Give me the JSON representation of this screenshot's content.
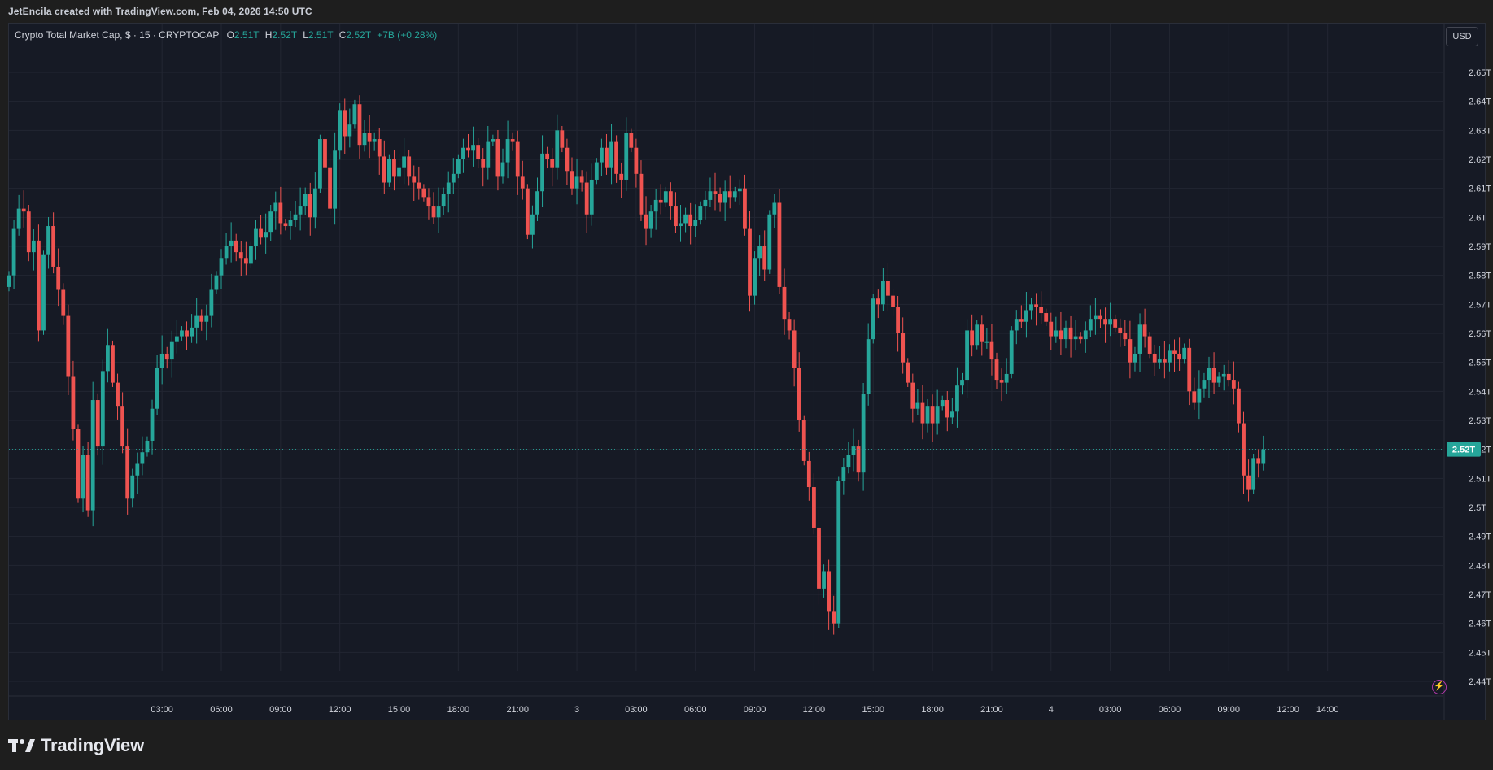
{
  "header": {
    "attribution": "JetEncila created with TradingView.com, Feb 04, 2026 14:50 UTC"
  },
  "legend": {
    "symbol": "Crypto Total Market Cap, $ · 15 · CRYPTOCAP",
    "open_label": "O",
    "open_value": "2.51T",
    "high_label": "H",
    "high_value": "2.52T",
    "low_label": "L",
    "low_value": "2.51T",
    "close_label": "C",
    "close_value": "2.52T",
    "change": "+7B (+0.28%)"
  },
  "currency_button": "USD",
  "brand": {
    "name": "TradingView"
  },
  "colors": {
    "up": "#26a69a",
    "down": "#ef5350",
    "background": "#161a25",
    "grid": "#222632",
    "axis_text": "#d1d4dc",
    "last_price_badge": "#26a69a"
  },
  "chart_data": {
    "type": "candlestick",
    "title": "Crypto Total Market Cap, $ · 15 · CRYPTOCAP",
    "interval": "15",
    "unit": "T",
    "ylim": [
      2.435,
      2.665
    ],
    "y_ticks": [
      "2.44T",
      "2.45T",
      "2.46T",
      "2.47T",
      "2.48T",
      "2.49T",
      "2.5T",
      "2.51T",
      "2.52T",
      "2.53T",
      "2.54T",
      "2.55T",
      "2.56T",
      "2.57T",
      "2.58T",
      "2.59T",
      "2.6T",
      "2.61T",
      "2.62T",
      "2.63T",
      "2.64T",
      "2.65T"
    ],
    "y_tick_values": [
      2.44,
      2.45,
      2.46,
      2.47,
      2.48,
      2.49,
      2.5,
      2.51,
      2.52,
      2.53,
      2.54,
      2.55,
      2.56,
      2.57,
      2.58,
      2.59,
      2.6,
      2.61,
      2.62,
      2.63,
      2.64,
      2.65
    ],
    "x_ticks": [
      "03:00",
      "06:00",
      "09:00",
      "12:00",
      "15:00",
      "18:00",
      "21:00",
      "3",
      "03:00",
      "06:00",
      "09:00",
      "12:00",
      "15:00",
      "18:00",
      "21:00",
      "4",
      "03:00",
      "06:00",
      "09:00",
      "12:00",
      "14:00"
    ],
    "x_tick_index": [
      31,
      43,
      55,
      67,
      79,
      91,
      103,
      115,
      127,
      139,
      151,
      163,
      175,
      187,
      199,
      211,
      223,
      235,
      247,
      259,
      267
    ],
    "last_price": 2.52,
    "last_price_label": "2.52T",
    "close_series": [
      2.58,
      2.596,
      2.603,
      2.602,
      2.588,
      2.592,
      2.561,
      2.587,
      2.597,
      2.583,
      2.575,
      2.566,
      2.545,
      2.527,
      2.503,
      2.518,
      2.499,
      2.537,
      2.521,
      2.547,
      2.556,
      2.543,
      2.535,
      2.521,
      2.503,
      2.511,
      2.515,
      2.519,
      2.523,
      2.534,
      2.548,
      2.553,
      2.551,
      2.557,
      2.559,
      2.561,
      2.559,
      2.562,
      2.566,
      2.564,
      2.566,
      2.575,
      2.58,
      2.586,
      2.59,
      2.592,
      2.588,
      2.586,
      2.584,
      2.59,
      2.596,
      2.593,
      2.595,
      2.602,
      2.605,
      2.598,
      2.597,
      2.599,
      2.601,
      2.604,
      2.608,
      2.6,
      2.61,
      2.627,
      2.617,
      2.603,
      2.623,
      2.637,
      2.628,
      2.632,
      2.639,
      2.625,
      2.629,
      2.626,
      2.627,
      2.621,
      2.612,
      2.62,
      2.614,
      2.617,
      2.621,
      2.614,
      2.612,
      2.61,
      2.607,
      2.604,
      2.6,
      2.604,
      2.608,
      2.612,
      2.615,
      2.62,
      2.624,
      2.623,
      2.625,
      2.62,
      2.617,
      2.626,
      2.627,
      2.614,
      2.619,
      2.627,
      2.626,
      2.614,
      2.61,
      2.594,
      2.601,
      2.609,
      2.622,
      2.62,
      2.617,
      2.63,
      2.624,
      2.616,
      2.61,
      2.614,
      2.612,
      2.601,
      2.613,
      2.619,
      2.624,
      2.617,
      2.626,
      2.615,
      2.613,
      2.629,
      2.624,
      2.615,
      2.601,
      2.596,
      2.602,
      2.606,
      2.605,
      2.609,
      2.604,
      2.597,
      2.598,
      2.601,
      2.597,
      2.599,
      2.604,
      2.606,
      2.609,
      2.608,
      2.605,
      2.609,
      2.607,
      2.609,
      2.61,
      2.596,
      2.573,
      2.586,
      2.59,
      2.582,
      2.601,
      2.605,
      2.576,
      2.565,
      2.561,
      2.548,
      2.53,
      2.516,
      2.507,
      2.493,
      2.472,
      2.478,
      2.464,
      2.46,
      2.509,
      2.514,
      2.518,
      2.521,
      2.512,
      2.539,
      2.558,
      2.572,
      2.57,
      2.578,
      2.573,
      2.569,
      2.56,
      2.55,
      2.543,
      2.534,
      2.536,
      2.529,
      2.535,
      2.529,
      2.535,
      2.537,
      2.531,
      2.533,
      2.542,
      2.544,
      2.561,
      2.556,
      2.563,
      2.557,
      2.557,
      2.551,
      2.544,
      2.543,
      2.546,
      2.561,
      2.565,
      2.564,
      2.568,
      2.57,
      2.569,
      2.567,
      2.564,
      2.559,
      2.561,
      2.558,
      2.562,
      2.558,
      2.559,
      2.558,
      2.561,
      2.565,
      2.566,
      2.565,
      2.563,
      2.565,
      2.562,
      2.56,
      2.558,
      2.55,
      2.553,
      2.563,
      2.559,
      2.553,
      2.55,
      2.551,
      2.55,
      2.554,
      2.553,
      2.551,
      2.555,
      2.54,
      2.536,
      2.541,
      2.544,
      2.548,
      2.543,
      2.545,
      2.546,
      2.544,
      2.541,
      2.529,
      2.511,
      2.506,
      2.517,
      2.515,
      2.52
    ]
  }
}
